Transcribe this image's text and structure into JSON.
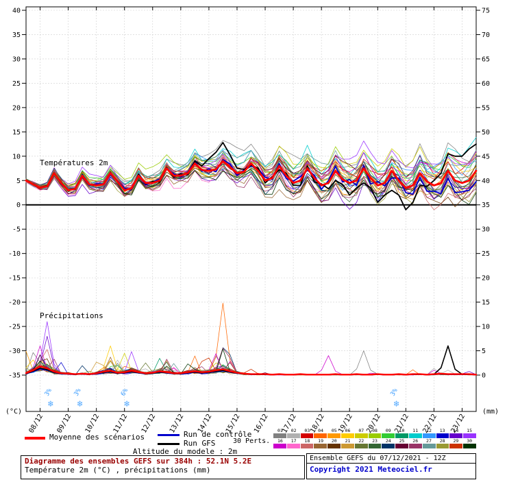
{
  "axes": {
    "left_unit": "(°C)",
    "right_unit": "(mm)",
    "temp_ticks": [
      40,
      35,
      30,
      25,
      20,
      15,
      10,
      5,
      0,
      -5,
      -10,
      -15,
      -20,
      -25,
      -30,
      -35
    ],
    "precip_ticks": [
      75,
      70,
      65,
      60,
      55,
      50,
      45,
      40,
      35,
      30,
      25,
      20,
      15,
      10,
      5,
      0
    ],
    "dates": [
      "08/12",
      "09/12",
      "10/12",
      "11/12",
      "12/12",
      "13/12",
      "14/12",
      "15/12",
      "16/12",
      "17/12",
      "18/12",
      "19/12",
      "20/12",
      "21/12",
      "22/12",
      "23/12"
    ]
  },
  "chart_labels": {
    "temperature": "Températures 2m",
    "precipitation": "Précipitations"
  },
  "snow_markers": [
    {
      "hour": 21,
      "pct": "3%"
    },
    {
      "hour": 46,
      "pct": "3%"
    },
    {
      "hour": 86,
      "pct": "6%"
    },
    {
      "hour": 316,
      "pct": "3%"
    }
  ],
  "legend": {
    "mean": {
      "label": "Moyenne des scénarios",
      "color": "#ff0000"
    },
    "control": {
      "label": "Run de contrôle",
      "color": "#0000cc"
    },
    "gfs": {
      "label": "Run GFS",
      "color": "#000000"
    },
    "perts_label": "30 Perts.",
    "pert_numbers_row1": [
      "01",
      "02",
      "03",
      "04",
      "05",
      "06",
      "07",
      "08",
      "09",
      "10",
      "11",
      "12",
      "13",
      "14",
      "15"
    ],
    "pert_numbers_row2": [
      "16",
      "17",
      "18",
      "19",
      "20",
      "21",
      "22",
      "23",
      "24",
      "25",
      "26",
      "27",
      "28",
      "29",
      "30"
    ],
    "pert_colors": [
      "#808080",
      "#b0b0b0",
      "#d40000",
      "#ff6600",
      "#ff9900",
      "#ffcc00",
      "#cccc00",
      "#99cc00",
      "#33cc33",
      "#009966",
      "#00cccc",
      "#3399ff",
      "#0000cc",
      "#6600cc",
      "#9933ff",
      "#cc00cc",
      "#ff66cc",
      "#cc6666",
      "#996633",
      "#663300",
      "#cc9933",
      "#667733",
      "#336633",
      "#003366",
      "#660033",
      "#993366",
      "#669999",
      "#999933",
      "#cc3300",
      "#003300"
    ]
  },
  "footer": {
    "altitude": "Altitude du modele : 2m",
    "title": "Diagramme des ensembles GEFS sur 384h : 52.1N 5.2E",
    "subtitle": "Température 2m (°C) , précipitations (mm)",
    "run_info": "Ensemble GEFS du 07/12/2021 - 12Z",
    "copyright": "Copyright 2021 Meteociel.fr"
  },
  "colors": {
    "grid": "#d0d0d0",
    "axis": "#000000",
    "snow": "#55aaff",
    "snow_pct": "#3399ff",
    "title": "#990000",
    "copyright": "#0000cc"
  },
  "chart_data": {
    "type": "line",
    "title": "Diagramme des ensembles GEFS sur 384h : 52.1N 5.2E",
    "x_hours_step": 6,
    "x_hours_max": 384,
    "temp_axis_range": [
      -35,
      40
    ],
    "precip_axis_range": [
      0,
      75
    ],
    "n_members": 30,
    "series": {
      "mean_temp": [
        5.0,
        4.2,
        3.5,
        3.8,
        6.5,
        4.5,
        3.0,
        3.3,
        6.0,
        4.2,
        4.0,
        4.2,
        6.5,
        4.8,
        3.0,
        3.4,
        6.0,
        4.5,
        4.5,
        5.0,
        7.5,
        6.0,
        6.0,
        6.5,
        8.5,
        7.2,
        7.0,
        7.3,
        9.0,
        7.8,
        6.5,
        6.8,
        8.5,
        7.0,
        5.0,
        5.5,
        8.0,
        6.0,
        4.5,
        5.0,
        7.5,
        5.5,
        4.0,
        4.5,
        7.0,
        5.2,
        4.5,
        5.0,
        7.5,
        5.5,
        4.0,
        4.5,
        7.0,
        5.0,
        3.5,
        4.0,
        6.5,
        4.8,
        4.0,
        4.5,
        7.0,
        5.0,
        4.5,
        5.0,
        7.0
      ],
      "control_temp_delta": [
        0,
        0,
        0,
        0,
        0,
        0,
        0,
        0,
        0.2,
        -0.2,
        0.3,
        0.1,
        -0.3,
        0.2,
        0.4,
        -0.2,
        0.3,
        -0.4,
        0.2,
        0.3,
        -0.2,
        0.4,
        -0.3,
        0.2,
        0.5,
        -0.3,
        0.4,
        -0.5,
        0.3,
        0.6,
        -0.4,
        0.3,
        -0.5,
        0.4,
        0.7,
        -0.3,
        0.5,
        -0.6,
        0.4,
        0.8,
        -0.4,
        0.6,
        -0.8,
        0.5,
        1.0,
        -0.5,
        0.7,
        -1.0,
        0.6,
        -1.2,
        0.8,
        -0.6,
        -1.5,
        0.5,
        -1.0,
        -1.8,
        -0.8,
        -2.0,
        -1.2,
        -2.2,
        -1.5,
        -2.5,
        -1.8,
        -2.0,
        -2.2
      ],
      "gfs_temp_delta": [
        0,
        0,
        0,
        0,
        0,
        0,
        0,
        0,
        0,
        0,
        0,
        0,
        0,
        0,
        0,
        0,
        0.3,
        -0.2,
        0.3,
        -0.3,
        0.2,
        -0.3,
        0.4,
        -0.2,
        0.5,
        0.8,
        2.5,
        3.5,
        3.8,
        2.5,
        1.0,
        0.5,
        -0.3,
        0.5,
        -0.5,
        0.3,
        -0.8,
        0.5,
        -0.5,
        -1.0,
        0.5,
        -0.8,
        0.3,
        -1.2,
        -2.0,
        -1.0,
        -2.5,
        -1.5,
        -3.0,
        -2.0,
        -3.5,
        -2.5,
        -4.0,
        -3.0,
        -4.5,
        -3.5,
        -2.5,
        -1.0,
        1.0,
        2.0,
        3.5,
        5.0,
        5.5,
        6.5,
        5.5
      ],
      "mean_precip": [
        0.4,
        1.0,
        1.8,
        1.4,
        0.7,
        0.4,
        0.3,
        0.2,
        0.3,
        0.2,
        0.4,
        0.7,
        0.9,
        0.5,
        0.6,
        0.9,
        0.6,
        0.4,
        0.5,
        0.8,
        0.6,
        0.4,
        0.4,
        0.6,
        0.8,
        0.6,
        0.7,
        1.0,
        1.2,
        0.8,
        0.5,
        0.3,
        0.2,
        0.2,
        0.2,
        0.1,
        0.2,
        0.1,
        0.1,
        0.2,
        0.1,
        0.1,
        0.1,
        0.1,
        0.2,
        0.1,
        0.1,
        0.2,
        0.1,
        0.1,
        0.2,
        0.1,
        0.1,
        0.2,
        0.1,
        0.2,
        0.2,
        0.1,
        0.2,
        0.3,
        0.2,
        0.2,
        0.2,
        0.2,
        0.1
      ],
      "precip_activity": [
        1,
        1,
        1,
        1,
        0.7,
        0.4,
        0.3,
        0.2,
        0.3,
        0.2,
        0.5,
        0.8,
        0.9,
        0.6,
        0.7,
        0.9,
        0.7,
        0.5,
        0.5,
        0.7,
        0.6,
        0.4,
        0.4,
        0.6,
        0.7,
        0.6,
        0.8,
        1,
        1,
        0.8,
        0.5,
        0.3,
        0.25,
        0.2,
        0.2,
        0.15,
        0.2,
        0.15,
        0.15,
        0.2,
        0.15,
        0.15,
        0.15,
        0.15,
        0.2,
        0.15,
        0.15,
        0.2,
        0.15,
        0.15,
        0.2,
        0.15,
        0.15,
        0.2,
        0.15,
        0.2,
        0.25,
        0.2,
        0.3,
        0.45,
        0.35,
        0.3,
        0.25,
        0.2,
        0.15
      ]
    },
    "gfs_precip_spikes": [
      {
        "hour": 354,
        "value": 1.5
      },
      {
        "hour": 360,
        "value": 6
      },
      {
        "hour": 366,
        "value": 1.2
      }
    ],
    "notable_precip_spikes": [
      {
        "hour": 18,
        "value": 11,
        "color": "#9933ff"
      },
      {
        "hour": 18,
        "value": 8,
        "color": "#6600cc"
      },
      {
        "hour": 12,
        "value": 6,
        "color": "#cc00cc"
      },
      {
        "hour": 72,
        "value": 6,
        "color": "#ffcc00"
      },
      {
        "hour": 84,
        "value": 4.5,
        "color": "#cccc00"
      },
      {
        "hour": 168,
        "value": 15,
        "color": "#ff6600"
      },
      {
        "hour": 258,
        "value": 4,
        "color": "#cc00cc"
      },
      {
        "hour": 288,
        "value": 5,
        "color": "#808080"
      }
    ]
  }
}
